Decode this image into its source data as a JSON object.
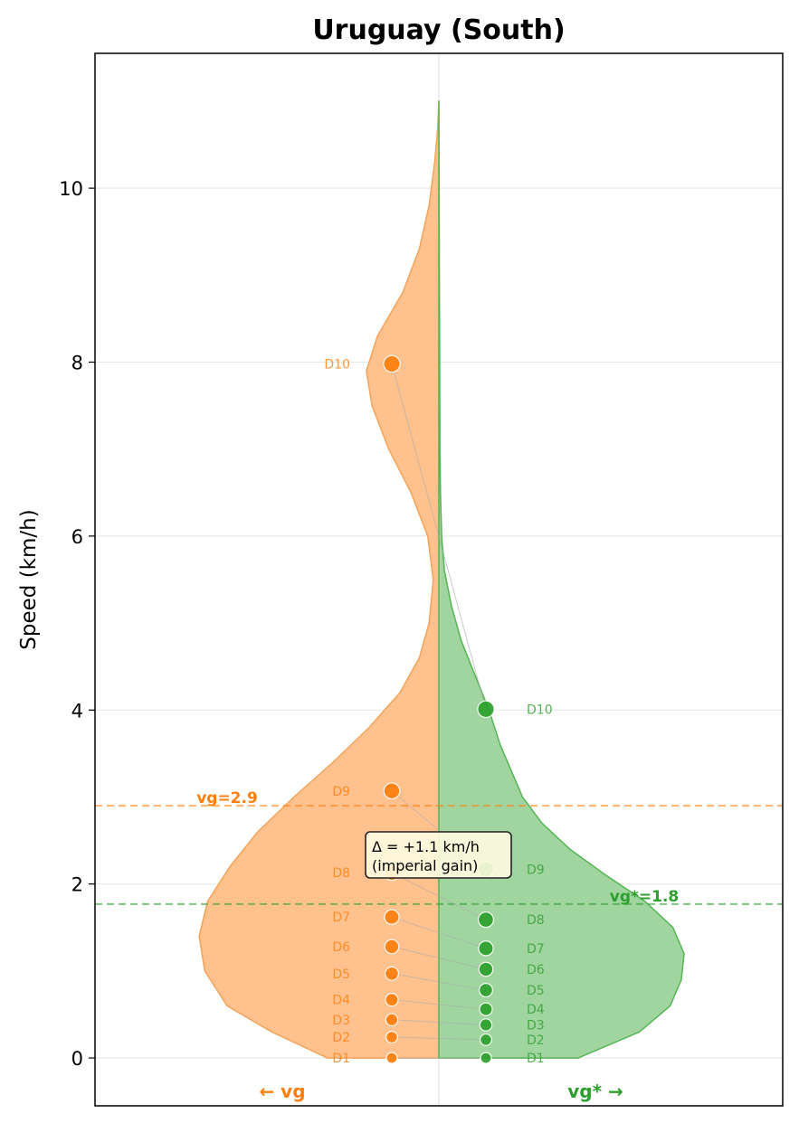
{
  "chart_data": {
    "type": "violin",
    "title": "Uruguay (South)",
    "ylabel": "Speed (km/h)",
    "ylim": [
      -0.55,
      11.55
    ],
    "yticks": [
      0,
      2,
      4,
      6,
      8,
      10
    ],
    "grid": true,
    "series": [
      {
        "name": "vg",
        "side_label": "← vg",
        "color": "#ff7f0e",
        "fill": "#ffc28f",
        "edge": "#f5a35a",
        "deciles": [
          {
            "label": "D1",
            "value": 0.0
          },
          {
            "label": "D2",
            "value": 0.24
          },
          {
            "label": "D3",
            "value": 0.44
          },
          {
            "label": "D4",
            "value": 0.67
          },
          {
            "label": "D5",
            "value": 0.97
          },
          {
            "label": "D6",
            "value": 1.28
          },
          {
            "label": "D7",
            "value": 1.62
          },
          {
            "label": "D8",
            "value": 2.13
          },
          {
            "label": "D9",
            "value": 3.07
          },
          {
            "label": "D10",
            "value": 7.98
          }
        ],
        "mean": 2.9,
        "mean_label": "vg=2.9",
        "density": [
          [
            0,
            0.4
          ],
          [
            0.3,
            0.6
          ],
          [
            0.6,
            0.76
          ],
          [
            1.0,
            0.84
          ],
          [
            1.4,
            0.86
          ],
          [
            1.8,
            0.83
          ],
          [
            2.2,
            0.75
          ],
          [
            2.6,
            0.65
          ],
          [
            3.0,
            0.52
          ],
          [
            3.4,
            0.38
          ],
          [
            3.8,
            0.25
          ],
          [
            4.2,
            0.14
          ],
          [
            4.6,
            0.07
          ],
          [
            5.0,
            0.035
          ],
          [
            5.5,
            0.02
          ],
          [
            6.0,
            0.04
          ],
          [
            6.5,
            0.1
          ],
          [
            7.0,
            0.18
          ],
          [
            7.5,
            0.24
          ],
          [
            7.9,
            0.26
          ],
          [
            8.3,
            0.22
          ],
          [
            8.8,
            0.13
          ],
          [
            9.3,
            0.07
          ],
          [
            9.8,
            0.035
          ],
          [
            10.3,
            0.015
          ],
          [
            10.7,
            0.004
          ],
          [
            11.0,
            0
          ]
        ]
      },
      {
        "name": "vg*",
        "side_label": "vg* →",
        "color": "#2ca02c",
        "fill": "#a0d5a0",
        "edge": "#55b555",
        "deciles": [
          {
            "label": "D1",
            "value": 0.0
          },
          {
            "label": "D2",
            "value": 0.21
          },
          {
            "label": "D3",
            "value": 0.38
          },
          {
            "label": "D4",
            "value": 0.56
          },
          {
            "label": "D5",
            "value": 0.78
          },
          {
            "label": "D6",
            "value": 1.02
          },
          {
            "label": "D7",
            "value": 1.26
          },
          {
            "label": "D8",
            "value": 1.59
          },
          {
            "label": "D9",
            "value": 2.17
          },
          {
            "label": "D10",
            "value": 4.01
          }
        ],
        "mean": 1.77,
        "mean_label": "vg*=1.8",
        "density": [
          [
            0,
            0.5
          ],
          [
            0.3,
            0.72
          ],
          [
            0.6,
            0.83
          ],
          [
            0.9,
            0.87
          ],
          [
            1.2,
            0.88
          ],
          [
            1.5,
            0.84
          ],
          [
            1.8,
            0.74
          ],
          [
            2.1,
            0.6
          ],
          [
            2.4,
            0.47
          ],
          [
            2.7,
            0.37
          ],
          [
            3.0,
            0.3
          ],
          [
            3.3,
            0.26
          ],
          [
            3.6,
            0.22
          ],
          [
            4.0,
            0.18
          ],
          [
            4.4,
            0.13
          ],
          [
            4.8,
            0.08
          ],
          [
            5.2,
            0.045
          ],
          [
            5.6,
            0.02
          ],
          [
            6.0,
            0.01
          ],
          [
            6.5,
            0.006
          ],
          [
            7.0,
            0.004
          ],
          [
            8.0,
            0.003
          ],
          [
            9.0,
            0.002
          ],
          [
            10.0,
            0.001
          ],
          [
            11.0,
            0
          ]
        ]
      }
    ],
    "annotation": {
      "line1": "Δ = +1.1 km/h",
      "line2": "(imperial gain)"
    }
  }
}
